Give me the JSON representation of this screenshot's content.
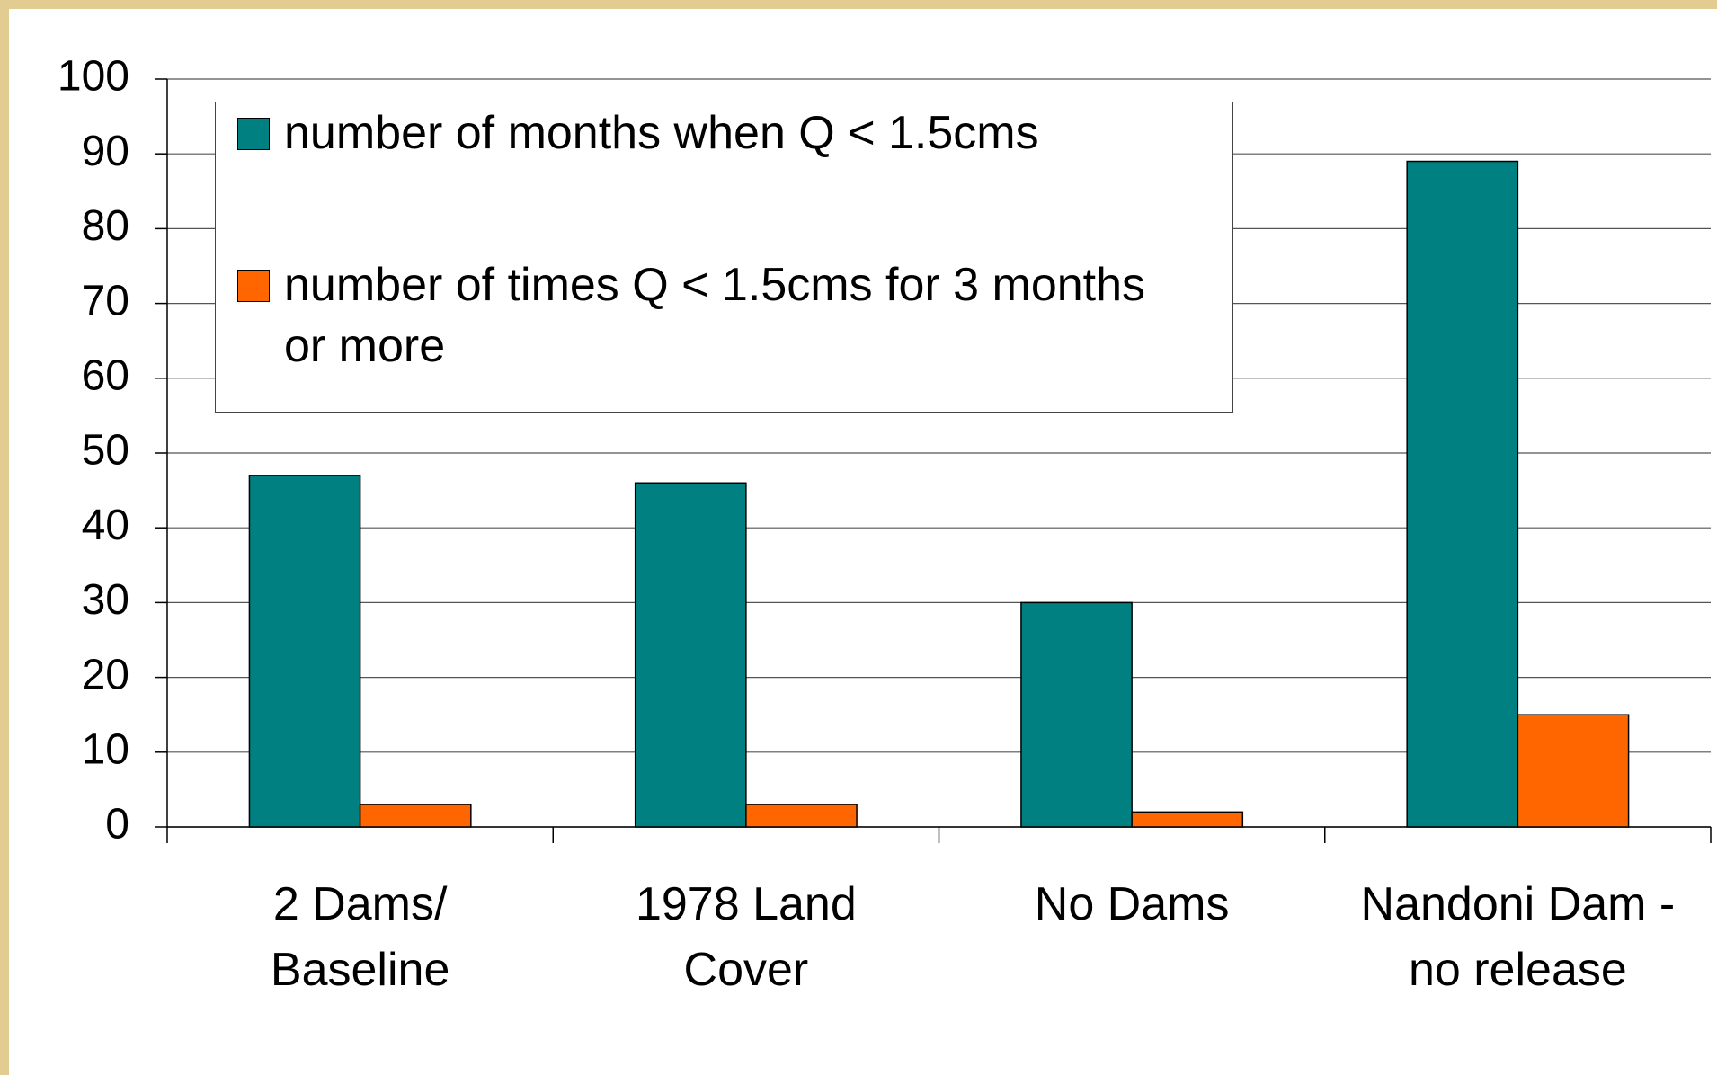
{
  "chart_data": {
    "type": "bar",
    "categories": [
      "2 Dams/\nBaseline",
      "1978 Land\nCover",
      "No Dams",
      "Nandoni Dam -\nno release"
    ],
    "series": [
      {
        "name": "number of months when Q < 1.5cms",
        "color": "#008080",
        "values": [
          47,
          46,
          30,
          89
        ]
      },
      {
        "name": "number of times Q < 1.5cms for 3 months\nor more",
        "color": "#ff6600",
        "values": [
          3,
          3,
          2,
          15
        ]
      }
    ],
    "ylim": [
      0,
      100
    ],
    "yticks": [
      0,
      10,
      20,
      30,
      40,
      50,
      60,
      70,
      80,
      90,
      100
    ],
    "grid": true,
    "legend": "upper left"
  }
}
